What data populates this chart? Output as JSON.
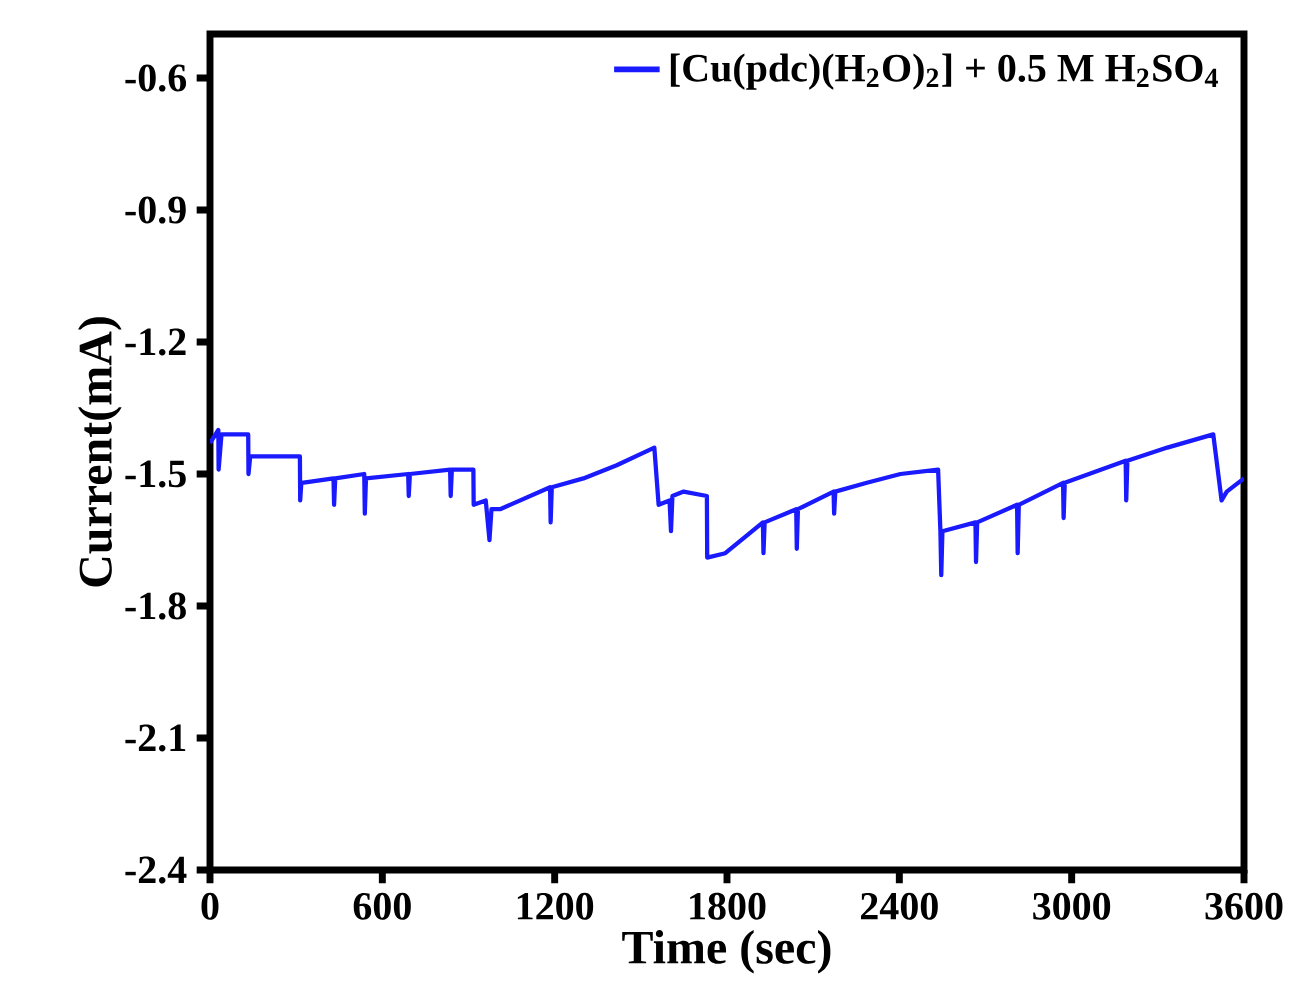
{
  "chart_data": {
    "type": "line",
    "xlabel": "Time (sec)",
    "ylabel": "Current(mA)",
    "xlim": [
      0,
      3600
    ],
    "ylim": [
      -2.4,
      -0.5
    ],
    "xticks": [
      0,
      600,
      1200,
      1800,
      2400,
      3000,
      3600
    ],
    "yticks": [
      -2.4,
      -2.1,
      -1.8,
      -1.5,
      -1.2,
      -0.9,
      -0.6
    ],
    "grid": false,
    "legend": "top right",
    "marker": "none",
    "line_style": "solid",
    "series": [
      {
        "name": "[Cu(pdc)(H$_{2}$O)$_{2}$] + 0.5 M H$_{2}$SO$_{4}$",
        "color": "#1a1aff",
        "x": [
          0,
          29,
          30,
          40,
          45,
          133,
          134,
          140,
          226,
          313,
          314,
          318,
          320,
          430,
          432,
          436,
          537,
          539,
          543,
          690,
          692,
          696,
          836,
          838,
          842,
          917,
          918,
          960,
          973,
          980,
          1010,
          1184,
          1186,
          1190,
          1300,
          1416,
          1547,
          1562,
          1600,
          1605,
          1610,
          1649,
          1730,
          1731,
          1794,
          1925,
          1927,
          1931,
          2041,
          2043,
          2047,
          2171,
          2173,
          2177,
          2287,
          2404,
          2535,
          2543,
          2546,
          2550,
          2665,
          2667,
          2671,
          2810,
          2812,
          2816,
          2970,
          2972,
          2976,
          3188,
          3190,
          3194,
          3333,
          3493,
          3522,
          3540,
          3600
        ],
        "values": [
          -1.43,
          -1.4,
          -1.49,
          -1.41,
          -1.41,
          -1.41,
          -1.5,
          -1.46,
          -1.46,
          -1.46,
          -1.56,
          -1.52,
          -1.52,
          -1.51,
          -1.57,
          -1.51,
          -1.5,
          -1.59,
          -1.51,
          -1.5,
          -1.55,
          -1.5,
          -1.49,
          -1.55,
          -1.49,
          -1.49,
          -1.57,
          -1.56,
          -1.65,
          -1.58,
          -1.58,
          -1.53,
          -1.61,
          -1.53,
          -1.51,
          -1.48,
          -1.44,
          -1.57,
          -1.56,
          -1.63,
          -1.55,
          -1.54,
          -1.55,
          -1.69,
          -1.68,
          -1.61,
          -1.68,
          -1.61,
          -1.58,
          -1.67,
          -1.58,
          -1.54,
          -1.59,
          -1.54,
          -1.52,
          -1.5,
          -1.49,
          -1.63,
          -1.73,
          -1.63,
          -1.61,
          -1.7,
          -1.61,
          -1.57,
          -1.68,
          -1.57,
          -1.52,
          -1.6,
          -1.52,
          -1.47,
          -1.56,
          -1.47,
          -1.44,
          -1.41,
          -1.56,
          -1.54,
          -1.51
        ]
      }
    ]
  }
}
